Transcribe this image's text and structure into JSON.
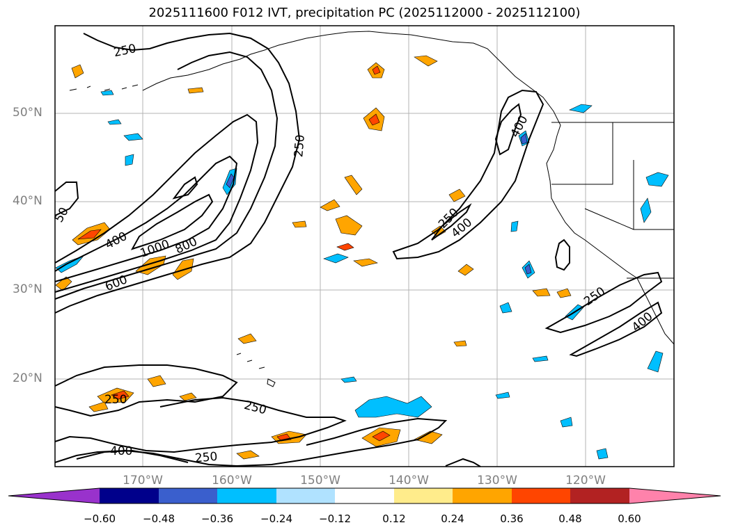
{
  "title": "2025111600 F012 IVT, precipitation PC (2025112000 - 2025112100)",
  "latitude_labels": [
    "50°N",
    "40°N",
    "30°N",
    "20°N"
  ],
  "longitude_labels": [
    "170°W",
    "160°W",
    "150°W",
    "140°W",
    "130°W",
    "120°W"
  ],
  "ivt_contour_labels": [
    {
      "name": "label-250-nw",
      "text": "250"
    },
    {
      "name": "label-250-mid",
      "text": "250"
    },
    {
      "name": "label-400-west",
      "text": "400"
    },
    {
      "name": "label-1000",
      "text": "1000"
    },
    {
      "name": "label-800",
      "text": "800"
    },
    {
      "name": "label-600",
      "text": "600"
    },
    {
      "name": "label-400-canada",
      "text": "400"
    },
    {
      "name": "label-250-east",
      "text": "250"
    },
    {
      "name": "label-400-east",
      "text": "400"
    },
    {
      "name": "label-250-socal",
      "text": "250"
    },
    {
      "name": "label-400-socal",
      "text": "400"
    },
    {
      "name": "label-250-south-w",
      "text": "250"
    },
    {
      "name": "label-250-south-mid",
      "text": "250"
    },
    {
      "name": "label-400-south",
      "text": "400"
    },
    {
      "name": "label-250-bottom",
      "text": "250"
    },
    {
      "name": "label-50-edge",
      "text": "50"
    }
  ],
  "colorbar": {
    "ticks": [
      "−0.60",
      "−0.48",
      "−0.36",
      "−0.24",
      "−0.12",
      "0.12",
      "0.24",
      "0.36",
      "0.48",
      "0.60"
    ],
    "bins": [
      {
        "name": "cb-under",
        "color": "#9932cc"
      },
      {
        "name": "cb-bin-1",
        "color": "#00008b"
      },
      {
        "name": "cb-bin-2",
        "color": "#3a5fcd"
      },
      {
        "name": "cb-bin-3",
        "color": "#00bfff"
      },
      {
        "name": "cb-bin-4",
        "color": "#b0e2ff"
      },
      {
        "name": "cb-bin-5",
        "color": "#ffffff"
      },
      {
        "name": "cb-bin-6",
        "color": "#ffec8b"
      },
      {
        "name": "cb-bin-7",
        "color": "#ffa500"
      },
      {
        "name": "cb-bin-8",
        "color": "#ff4500"
      },
      {
        "name": "cb-bin-9",
        "color": "#b22222"
      },
      {
        "name": "cb-over",
        "color": "#ff82ab"
      }
    ]
  },
  "colors": {
    "grid": "#b3b3b3",
    "contour": "#000000",
    "coast": "#000000",
    "positive_light": "#ffa500",
    "positive_strong": "#ff4500",
    "negative_light": "#00bfff",
    "negative_strong": "#3a5fcd"
  }
}
